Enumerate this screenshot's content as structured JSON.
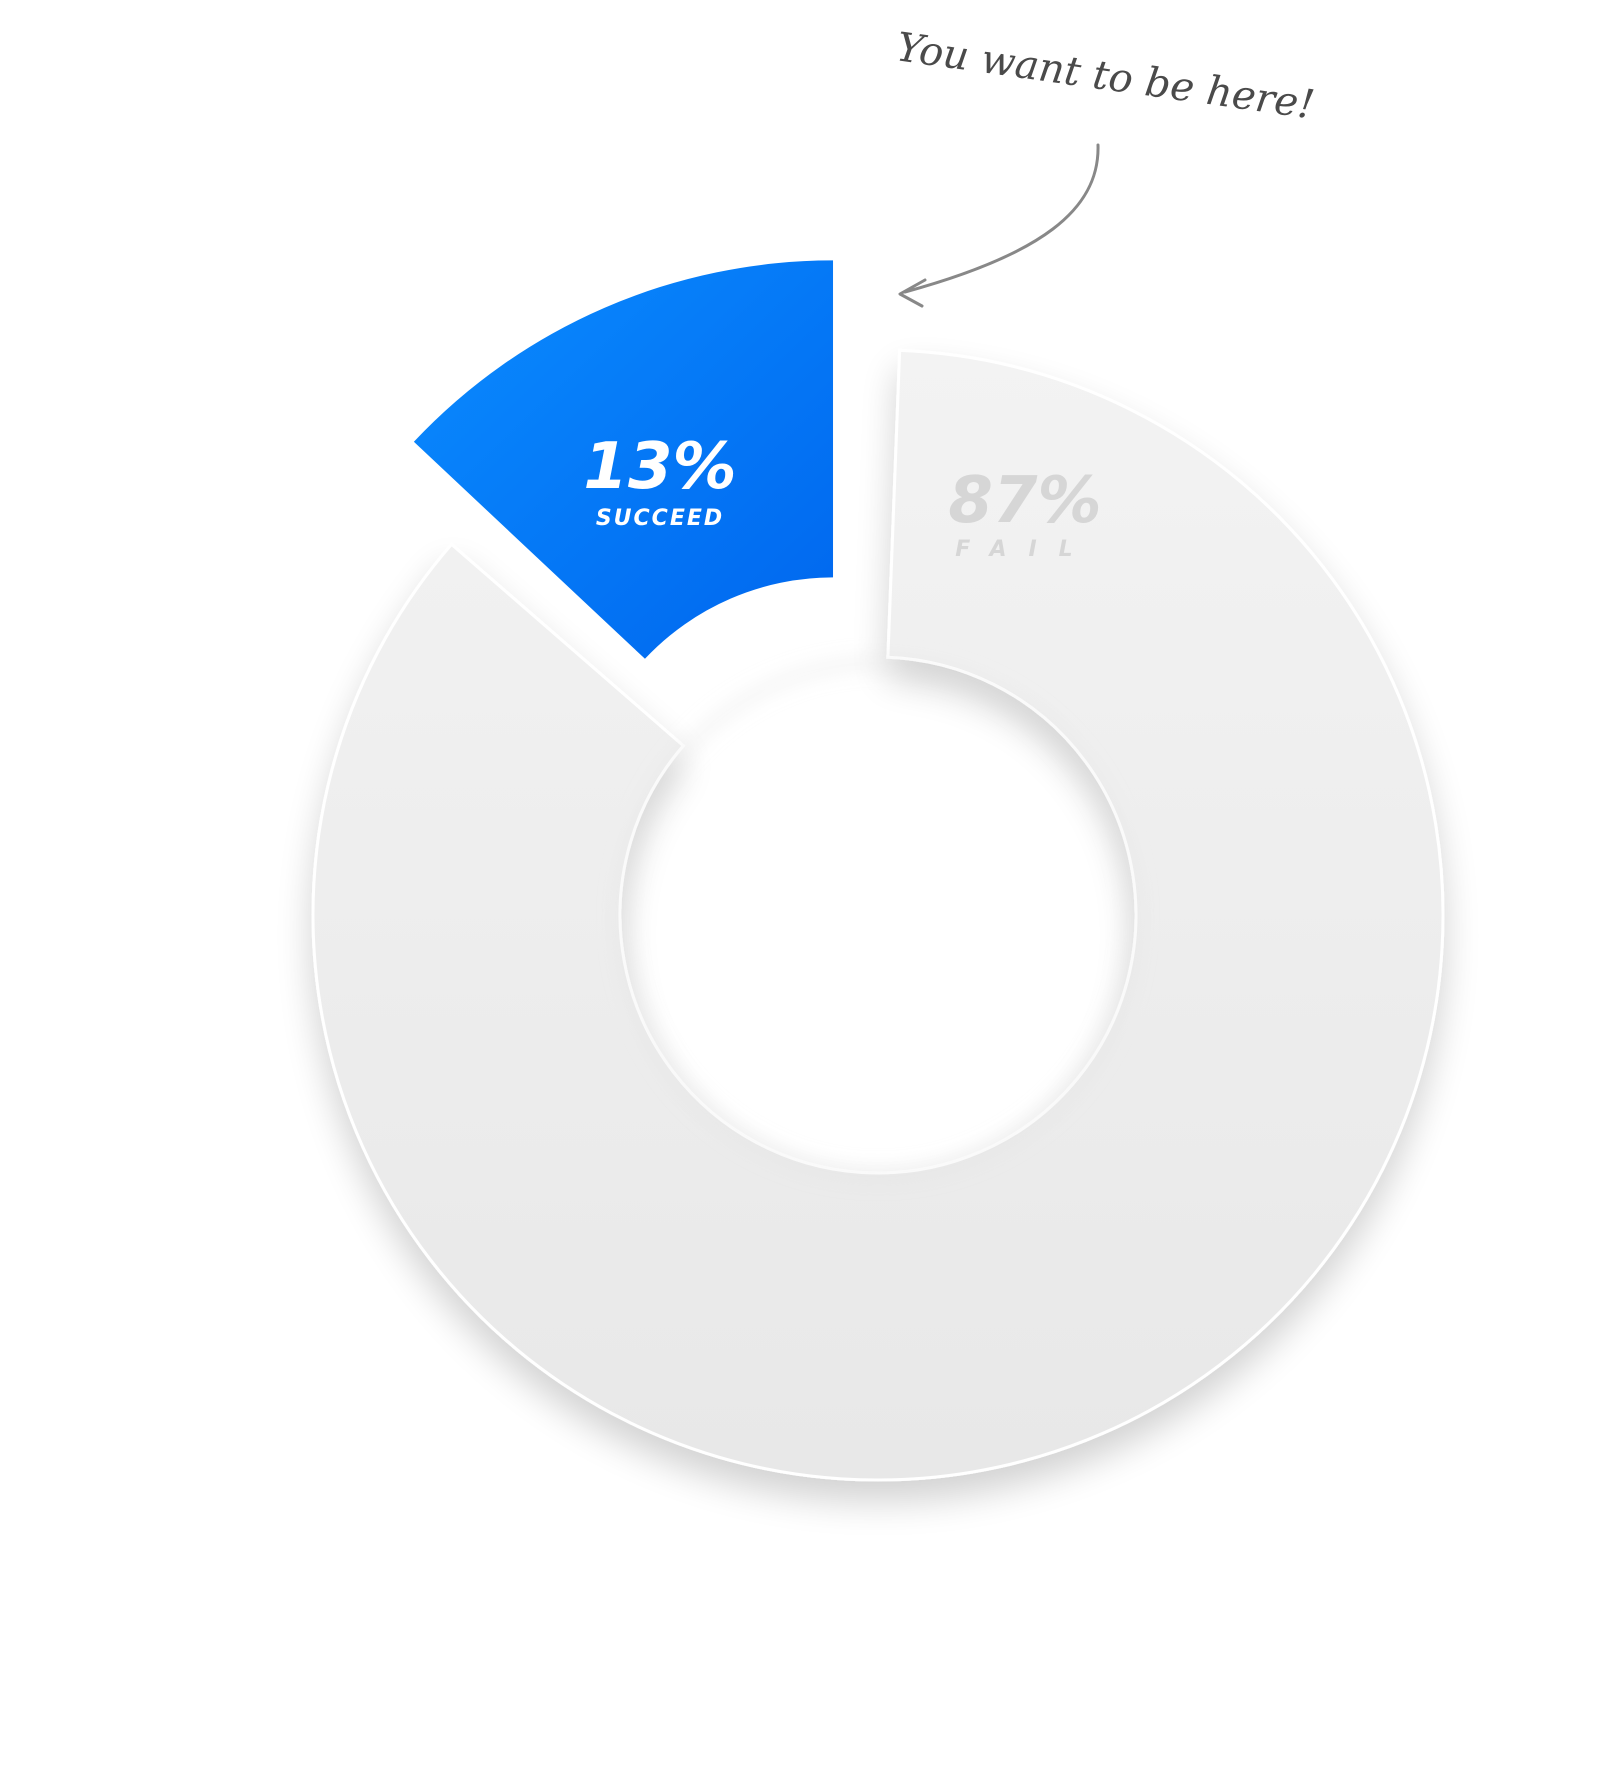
{
  "chart_data": {
    "type": "pie",
    "subtype": "donut",
    "slices": [
      {
        "label": "SUCCEED",
        "value": 13,
        "value_label": "13%",
        "color": "#0a7cf5",
        "exploded": true
      },
      {
        "label": "FAIL",
        "value": 87,
        "value_label": "87%",
        "color": "#ededed",
        "exploded": false
      }
    ],
    "annotation": {
      "text": "You want to be here!",
      "points_to": "SUCCEED"
    }
  },
  "colors": {
    "success_top": "#0a8cff",
    "success_bottom": "#0066ee",
    "fail_fill": "#eeeeee",
    "fail_text": "#d6d6d6",
    "annotation": "#4a4a4a",
    "arrow": "#888888"
  }
}
